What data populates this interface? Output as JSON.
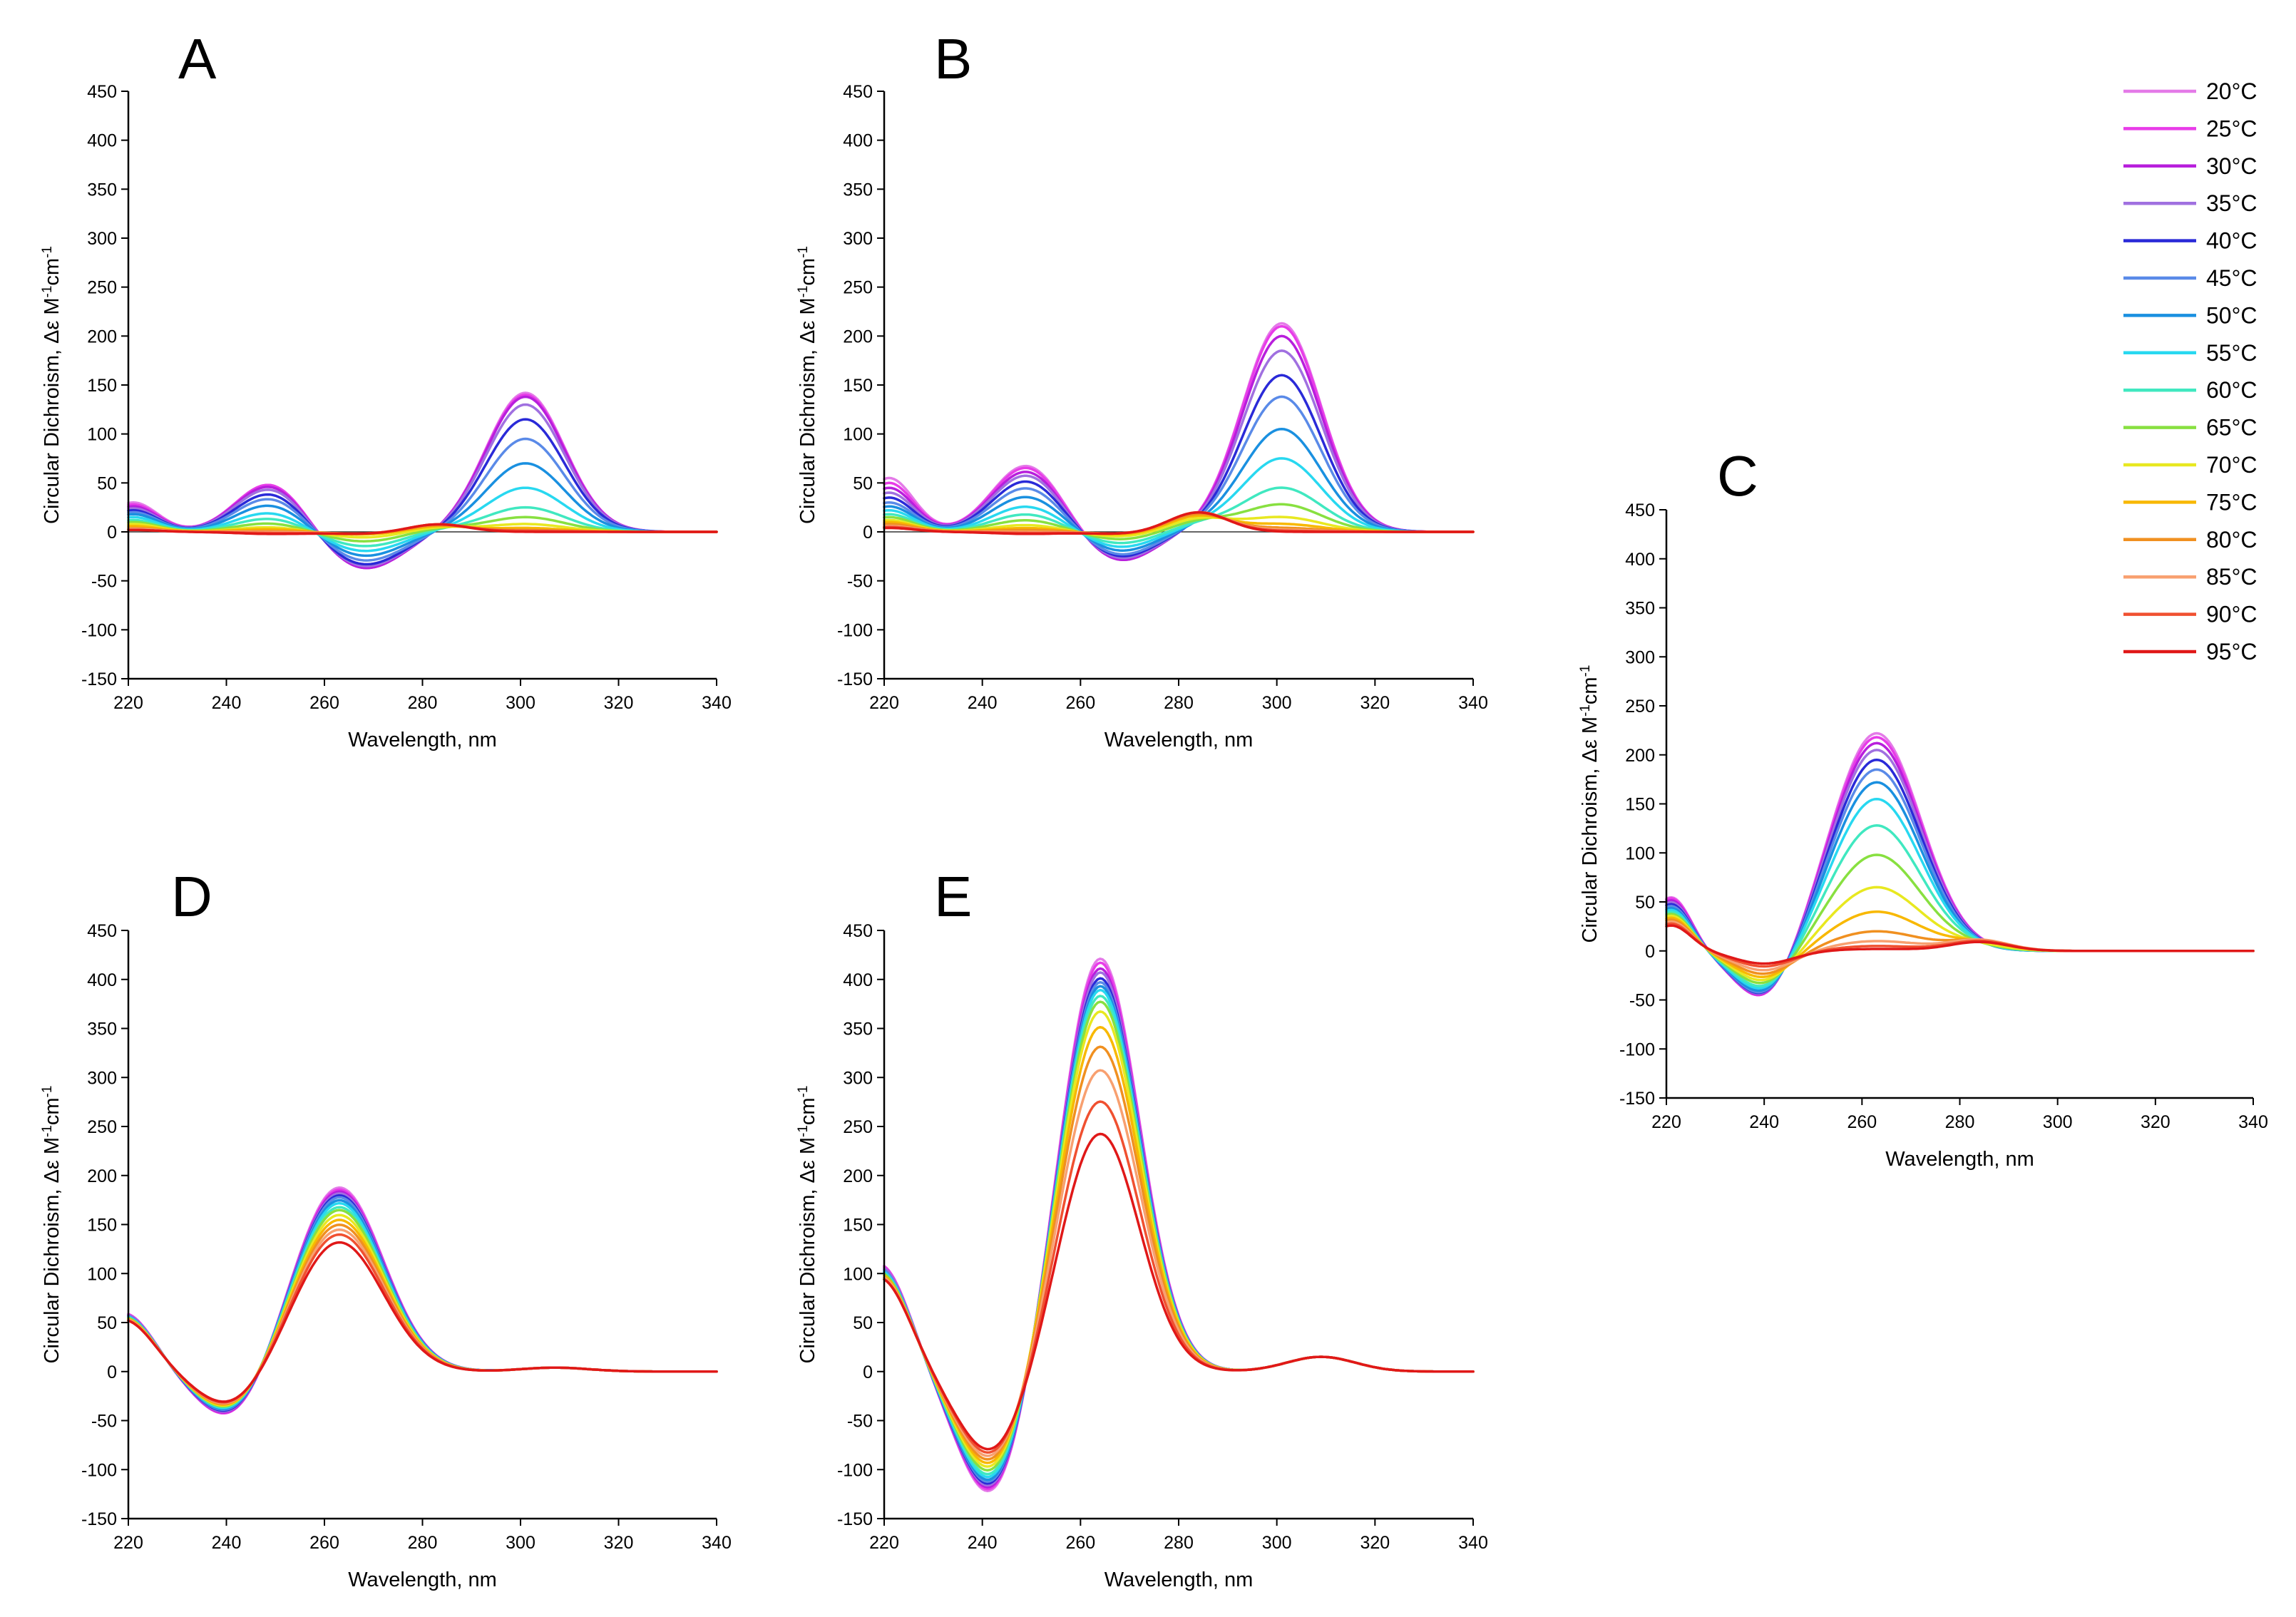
{
  "temperatures": [
    "20°C",
    "25°C",
    "30°C",
    "35°C",
    "40°C",
    "45°C",
    "50°C",
    "55°C",
    "60°C",
    "65°C",
    "70°C",
    "75°C",
    "80°C",
    "85°C",
    "90°C",
    "95°C"
  ],
  "colors": [
    "#e47ae8",
    "#e83ce8",
    "#b81fdc",
    "#a070e0",
    "#2a2ad8",
    "#5a8ae8",
    "#1a90e0",
    "#28d8f0",
    "#40e8c0",
    "#88e040",
    "#e8e820",
    "#f8b800",
    "#f09020",
    "#f8a070",
    "#f05030",
    "#e01818"
  ],
  "axis_text": {
    "xlabel": "Wavelength, nm",
    "ylabel_main": "Circular Dichroism, ",
    "ylabel_eps_d": "Δε",
    "ylabel_eps_e": "Δε",
    "ylabel_units_a": " M",
    "ylabel_units_b": "cm",
    "sup_minus1": "-1"
  },
  "chart_data": [
    {
      "id": "A",
      "type": "line",
      "title": "A",
      "xlabel": "Wavelength, nm",
      "ylabel": "Circular Dichroism, Δε M-1cm-1",
      "xlim": [
        220,
        340
      ],
      "ylim": [
        -150,
        450
      ],
      "xticks": [
        220,
        240,
        260,
        280,
        300,
        320,
        340
      ],
      "yticks": [
        -150,
        -100,
        -50,
        0,
        50,
        100,
        150,
        200,
        250,
        300,
        350,
        400,
        450
      ],
      "zero_line": true,
      "features": [
        {
          "center": 249,
          "width": 7,
          "values": [
            50,
            50,
            48,
            45,
            40,
            35,
            28,
            20,
            14,
            9,
            5,
            3,
            1,
            0,
            -1,
            -2
          ]
        },
        {
          "center": 268,
          "width": 8,
          "values": [
            -38,
            -38,
            -38,
            -36,
            -34,
            -30,
            -25,
            -20,
            -15,
            -10,
            -6,
            -3,
            -2,
            -2,
            -2,
            -2
          ]
        },
        {
          "center": 301,
          "width": 8,
          "values": [
            142,
            140,
            138,
            130,
            115,
            95,
            70,
            45,
            25,
            15,
            8,
            4,
            2,
            1,
            1,
            0
          ]
        },
        {
          "center": 283,
          "width": 6,
          "values": [
            0,
            0,
            0,
            0,
            0,
            0,
            1,
            2,
            3,
            4,
            5,
            6,
            7,
            8,
            8,
            8
          ]
        },
        {
          "center": 221,
          "width": 5,
          "values": [
            30,
            28,
            26,
            24,
            22,
            20,
            18,
            15,
            12,
            10,
            8,
            6,
            4,
            3,
            2,
            2
          ]
        }
      ]
    },
    {
      "id": "B",
      "type": "line",
      "title": "B",
      "xlabel": "Wavelength, nm",
      "ylabel": "Circular Dichroism, Δε M-1cm-1",
      "xlim": [
        220,
        340
      ],
      "ylim": [
        -150,
        450
      ],
      "xticks": [
        220,
        240,
        260,
        280,
        300,
        320,
        340
      ],
      "yticks": [
        -150,
        -100,
        -50,
        0,
        50,
        100,
        150,
        200,
        250,
        300,
        350,
        400,
        450
      ],
      "zero_line": true,
      "features": [
        {
          "center": 249,
          "width": 7,
          "values": [
            68,
            66,
            62,
            58,
            52,
            45,
            36,
            26,
            18,
            12,
            7,
            4,
            2,
            0,
            -1,
            -2
          ]
        },
        {
          "center": 268,
          "width": 7,
          "values": [
            -30,
            -30,
            -30,
            -28,
            -26,
            -24,
            -20,
            -16,
            -12,
            -8,
            -5,
            -3,
            -2,
            -2,
            -2,
            -2
          ]
        },
        {
          "center": 301,
          "width": 8,
          "values": [
            213,
            210,
            200,
            185,
            160,
            138,
            105,
            75,
            45,
            28,
            15,
            8,
            4,
            2,
            1,
            0
          ]
        },
        {
          "center": 284,
          "width": 6,
          "values": [
            0,
            0,
            0,
            0,
            1,
            2,
            3,
            5,
            7,
            10,
            13,
            16,
            18,
            20,
            20,
            20
          ]
        },
        {
          "center": 221,
          "width": 5,
          "values": [
            55,
            50,
            45,
            40,
            35,
            30,
            26,
            22,
            18,
            15,
            12,
            10,
            8,
            6,
            5,
            4
          ]
        }
      ]
    },
    {
      "id": "C",
      "type": "line",
      "title": "C",
      "xlabel": "Wavelength, nm",
      "ylabel": "Circular Dichroism, Δε M-1cm-1",
      "xlim": [
        220,
        340
      ],
      "ylim": [
        -150,
        450
      ],
      "xticks": [
        220,
        240,
        260,
        280,
        300,
        320,
        340
      ],
      "yticks": [
        -150,
        -100,
        -50,
        0,
        50,
        100,
        150,
        200,
        250,
        300,
        350,
        400,
        450
      ],
      "zero_line": false,
      "features": [
        {
          "center": 240,
          "width": 6,
          "values": [
            -52,
            -52,
            -51,
            -50,
            -49,
            -48,
            -46,
            -43,
            -40,
            -36,
            -32,
            -28,
            -24,
            -20,
            -16,
            -13
          ]
        },
        {
          "center": 263,
          "width": 9,
          "values": [
            222,
            218,
            212,
            205,
            195,
            185,
            172,
            155,
            128,
            98,
            65,
            40,
            20,
            10,
            5,
            2
          ]
        },
        {
          "center": 284,
          "width": 6,
          "values": [
            0,
            0,
            0,
            0,
            0,
            0,
            0,
            1,
            2,
            3,
            5,
            8,
            10,
            11,
            10,
            9
          ]
        },
        {
          "center": 221,
          "width": 4,
          "values": [
            55,
            54,
            52,
            50,
            48,
            46,
            44,
            42,
            40,
            38,
            36,
            34,
            32,
            30,
            28,
            26
          ]
        }
      ]
    },
    {
      "id": "D",
      "type": "line",
      "title": "D",
      "xlabel": "Wavelength, nm",
      "ylabel": "Circular Dichroism, Δε M-1cm-1",
      "xlim": [
        220,
        340
      ],
      "ylim": [
        -150,
        450
      ],
      "xticks": [
        220,
        240,
        260,
        280,
        300,
        320,
        340
      ],
      "yticks": [
        -150,
        -100,
        -50,
        0,
        50,
        100,
        150,
        200,
        250,
        300,
        350,
        400,
        450
      ],
      "zero_line": false,
      "features": [
        {
          "center": 241,
          "width": 7,
          "values": [
            -50,
            -50,
            -49,
            -48,
            -47,
            -46,
            -45,
            -44,
            -43,
            -42,
            -41,
            -40,
            -39,
            -38,
            -37,
            -36
          ]
        },
        {
          "center": 263,
          "width": 9,
          "values": [
            188,
            186,
            184,
            182,
            180,
            178,
            175,
            172,
            168,
            165,
            160,
            155,
            150,
            145,
            140,
            132
          ]
        },
        {
          "center": 307,
          "width": 7,
          "values": [
            4,
            4,
            4,
            4,
            4,
            4,
            4,
            4,
            4,
            4,
            4,
            4,
            4,
            4,
            4,
            4
          ]
        },
        {
          "center": 219,
          "width": 6,
          "values": [
            60,
            60,
            59,
            59,
            58,
            58,
            57,
            57,
            56,
            56,
            55,
            55,
            54,
            54,
            53,
            53
          ]
        }
      ]
    },
    {
      "id": "E",
      "type": "line",
      "title": "E",
      "xlabel": "Wavelength, nm",
      "ylabel": "Circular Dichroism, Δε M-1cm-1",
      "xlim": [
        220,
        340
      ],
      "ylim": [
        -150,
        450
      ],
      "xticks": [
        220,
        240,
        260,
        280,
        300,
        320,
        340
      ],
      "yticks": [
        -150,
        -100,
        -50,
        0,
        50,
        100,
        150,
        200,
        250,
        300,
        350,
        400,
        450
      ],
      "zero_line": false,
      "features": [
        {
          "center": 242,
          "width": 7,
          "values": [
            -130,
            -128,
            -126,
            -124,
            -122,
            -120,
            -118,
            -115,
            -112,
            -108,
            -104,
            -100,
            -96,
            -92,
            -88,
            -84
          ]
        },
        {
          "center": 264,
          "width": 8,
          "values": [
            422,
            418,
            412,
            408,
            402,
            398,
            394,
            390,
            384,
            378,
            368,
            352,
            332,
            308,
            276,
            243
          ]
        },
        {
          "center": 309,
          "width": 7,
          "values": [
            15,
            15,
            15,
            15,
            15,
            15,
            15,
            15,
            15,
            15,
            15,
            15,
            15,
            15,
            15,
            15
          ]
        },
        {
          "center": 219,
          "width": 6,
          "values": [
            110,
            110,
            108,
            108,
            106,
            106,
            104,
            104,
            102,
            102,
            100,
            100,
            98,
            98,
            96,
            96
          ]
        }
      ]
    }
  ]
}
